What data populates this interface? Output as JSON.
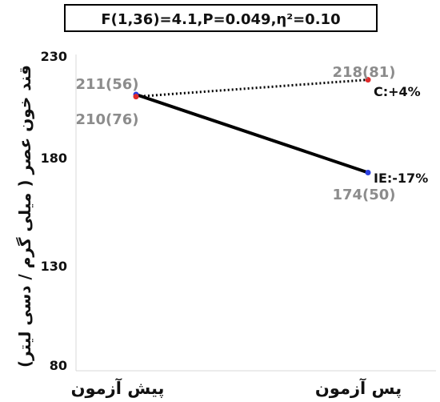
{
  "chart_data": {
    "type": "line",
    "title": "F(1,36)=4.1,P=0.049,η²=0.10",
    "categories": [
      "پیش آزمون",
      "پس آزمون"
    ],
    "ylabel": "قند خون عصر ( میلی گرم / دسی لیتر)",
    "ylim": [
      80,
      230
    ],
    "yticks": [
      "230",
      "180",
      "130",
      "80"
    ],
    "grid": false,
    "series": [
      {
        "key": "IE",
        "values": [
          211,
          174
        ],
        "point_labels": [
          "211(56)",
          "174(50)"
        ],
        "end_label": "IE:-17%",
        "color": "#000000",
        "marker_color": "#2b3fe0",
        "style": "solid"
      },
      {
        "key": "C",
        "values": [
          210,
          218
        ],
        "point_labels": [
          "210(76)",
          "218(81)"
        ],
        "end_label": "C:+4%",
        "color": "#000000",
        "marker_color": "#e02b2b",
        "style": "dotted"
      }
    ]
  }
}
